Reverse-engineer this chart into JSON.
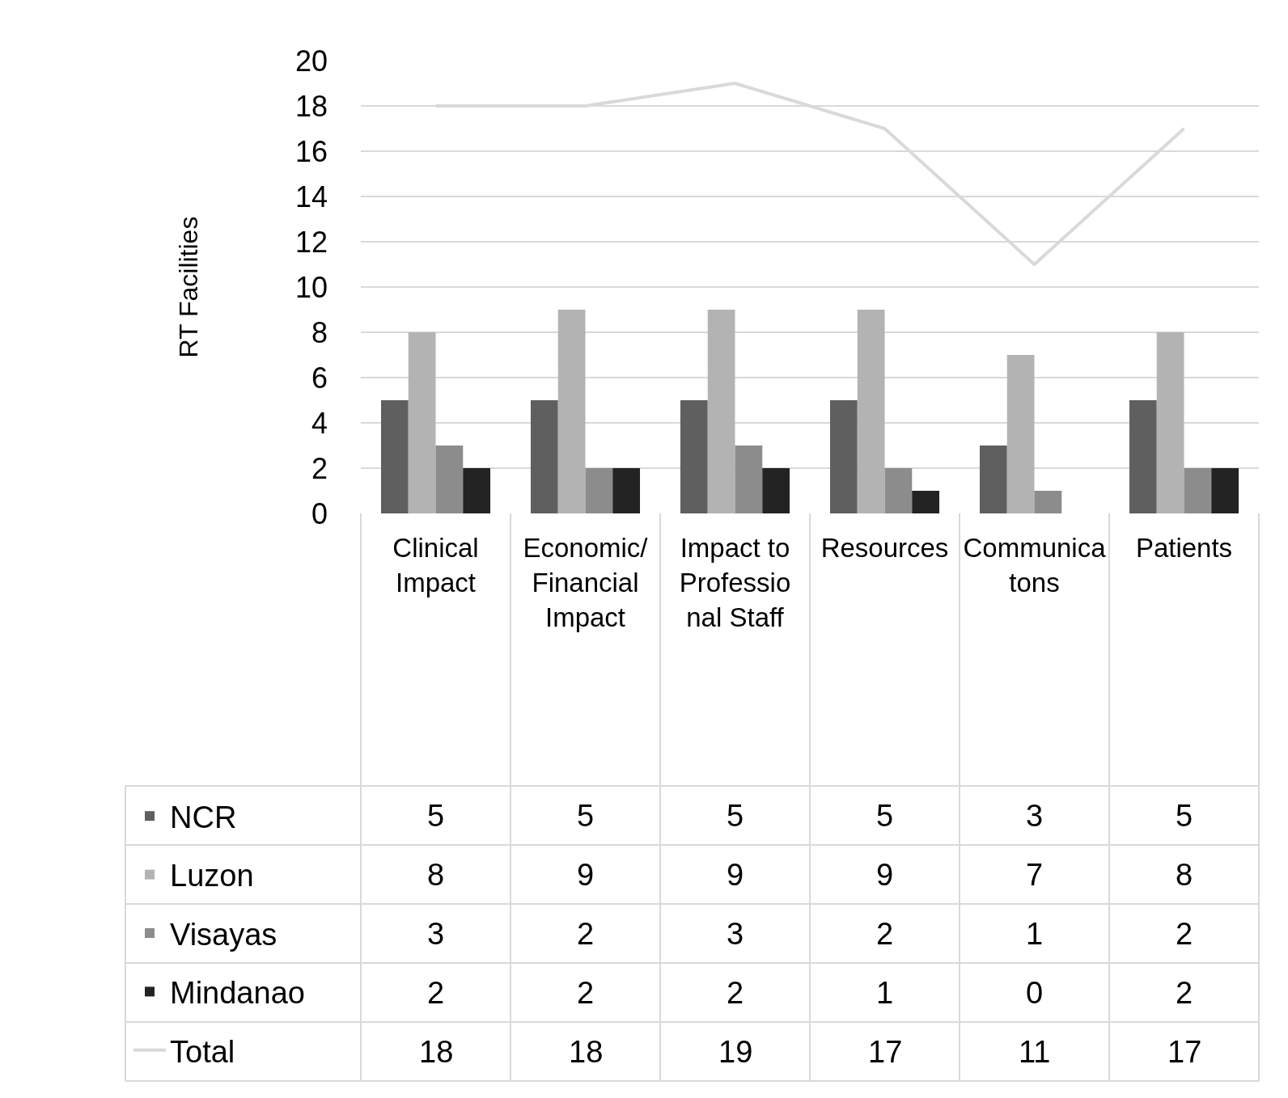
{
  "chart_data": {
    "type": "bar",
    "ylabel": "RT Facilities",
    "categories": [
      "Clinical Impact",
      "Economic/Financial Impact",
      "Impact to Professional Staff",
      "Resources",
      "Communicatons",
      "Patients"
    ],
    "series": [
      {
        "name": "NCR",
        "color": "#5f5f5f",
        "values": [
          5,
          5,
          5,
          5,
          3,
          5
        ]
      },
      {
        "name": "Luzon",
        "color": "#b3b3b3",
        "values": [
          8,
          9,
          9,
          9,
          7,
          8
        ]
      },
      {
        "name": "Visayas",
        "color": "#8c8c8c",
        "values": [
          3,
          2,
          3,
          2,
          1,
          2
        ]
      },
      {
        "name": "Mindanao",
        "color": "#232323",
        "values": [
          2,
          2,
          2,
          1,
          0,
          2
        ]
      },
      {
        "name": "Total",
        "type": "line",
        "color": "#d9d9d9",
        "values": [
          18,
          18,
          19,
          17,
          11,
          17
        ]
      }
    ],
    "ylim": [
      0,
      20
    ],
    "yticks": [
      0,
      2,
      4,
      6,
      8,
      10,
      12,
      14,
      16,
      18,
      20
    ],
    "grid": "y",
    "legend": "bottom left",
    "marker": "none",
    "data_labels": true
  }
}
